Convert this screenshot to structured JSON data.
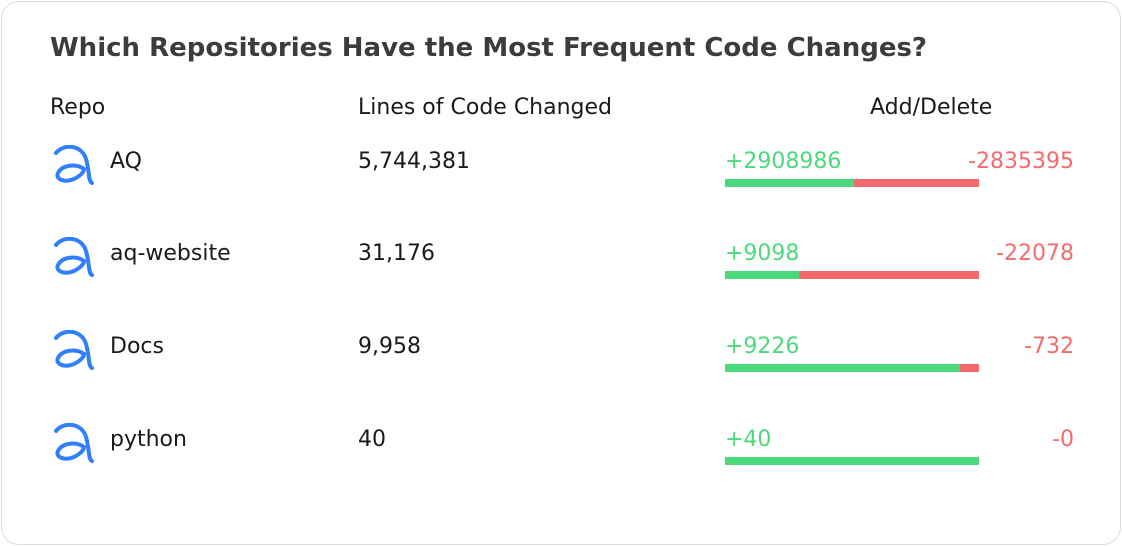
{
  "title": "Which Repositories Have the Most Frequent Code Changes?",
  "headers": {
    "repo": "Repo",
    "lines": "Lines of Code Changed",
    "add_delete": "Add/Delete"
  },
  "colors": {
    "add": "#4cd97b",
    "delete": "#f46b6b",
    "icon": "#2f7fff"
  },
  "rows": [
    {
      "icon": "repo-logo-icon",
      "repo": "AQ",
      "lines": "5,744,381",
      "add_label": "+2908986",
      "delete_label": "-2835395",
      "additions": 2908986,
      "deletions": 2835395
    },
    {
      "icon": "repo-logo-icon",
      "repo": "aq-website",
      "lines": "31,176",
      "add_label": "+9098",
      "delete_label": "-22078",
      "additions": 9098,
      "deletions": 22078
    },
    {
      "icon": "repo-logo-icon",
      "repo": "Docs",
      "lines": "9,958",
      "add_label": "+9226",
      "delete_label": "-732",
      "additions": 9226,
      "deletions": 732
    },
    {
      "icon": "repo-logo-icon",
      "repo": "python",
      "lines": "40",
      "add_label": "+40",
      "delete_label": "-0",
      "additions": 40,
      "deletions": 0
    }
  ]
}
